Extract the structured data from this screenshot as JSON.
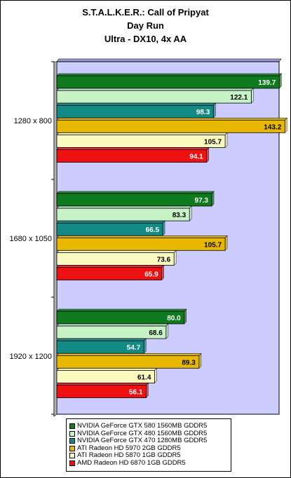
{
  "chart_data": {
    "type": "bar",
    "orientation": "horizontal",
    "title": [
      "S.T.A.L.K.E.R.: Call of Pripyat",
      "Day Run",
      "Ultra - DX10, 4x AA"
    ],
    "categories": [
      "1280 x 800",
      "1680 x 1050",
      "1920 x 1200"
    ],
    "series": [
      {
        "name": "NVIDIA GeForce GTX 580 1560MB GDDR5",
        "color": "#0f7a1e",
        "values": [
          139.7,
          97.3,
          80.0
        ],
        "labels": [
          "139.7",
          "97.3",
          "80.0"
        ]
      },
      {
        "name": "NVIDIA GeForce GTX 480 1560MB GDDR5",
        "color": "#c6f2c6",
        "values": [
          122.1,
          83.3,
          68.6
        ],
        "labels": [
          "122.1",
          "83.3",
          "68.6"
        ]
      },
      {
        "name": "NVIDIA GeForce GTX 470 1280MB GDDR5",
        "color": "#138b84",
        "values": [
          98.3,
          66.5,
          54.7
        ],
        "labels": [
          "98.3",
          "66.5",
          "54.7"
        ]
      },
      {
        "name": "ATI Radeon HD 5970 2GB GDDR5",
        "color": "#e8b800",
        "values": [
          143.2,
          105.7,
          89.3
        ],
        "labels": [
          "143.2",
          "105.7",
          "89.3"
        ]
      },
      {
        "name": "ATI Radeon HD 5870 1GB GDDR5",
        "color": "#fafac0",
        "values": [
          105.7,
          73.6,
          61.4
        ],
        "labels": [
          "105.7",
          "73.6",
          "61.4"
        ]
      },
      {
        "name": "AMD Radeon HD 6870 1GB GDDR5",
        "color": "#ee1111",
        "values": [
          94.1,
          65.9,
          56.1
        ],
        "labels": [
          "94.1",
          "65.9",
          "56.1"
        ]
      }
    ],
    "xlim": [
      0,
      160
    ],
    "grid": false,
    "legend": "bottom",
    "plot_background": "#ccccff"
  }
}
